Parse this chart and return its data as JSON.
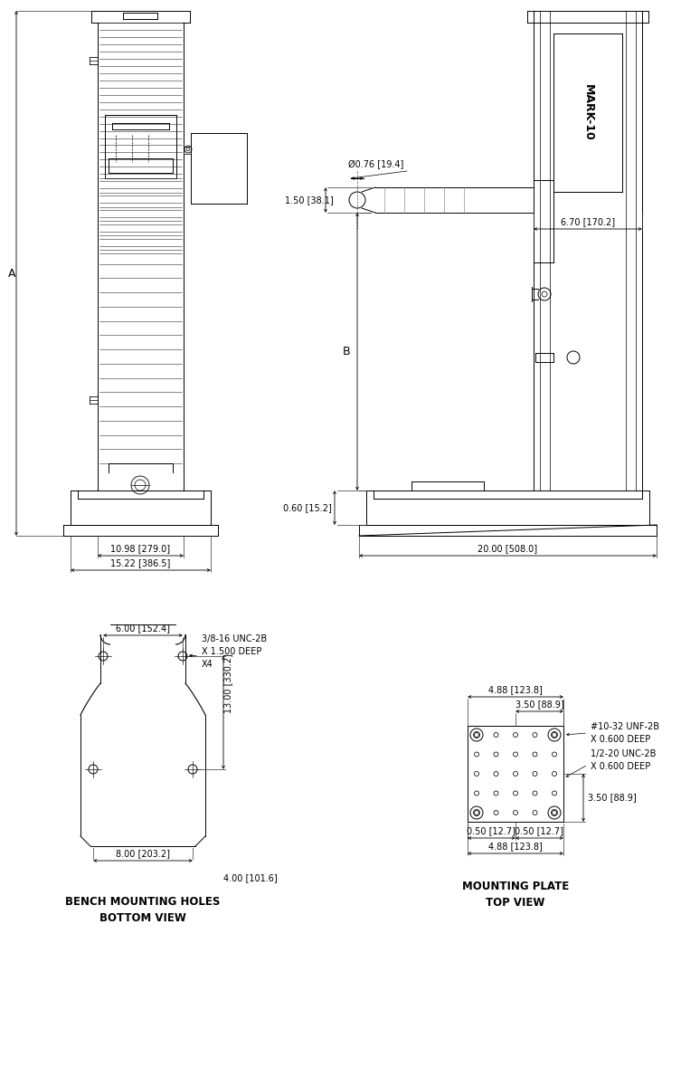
{
  "bg_color": "#ffffff",
  "fs": 7.0,
  "fs_title": 8.5,
  "dims_front": {
    "width_inner": "10.98 [279.0]",
    "width_outer": "15.22 [386.5]",
    "label_A": "A"
  },
  "dims_side": {
    "diam": "Ø0.76 [19.4]",
    "h1": "1.50 [38.1]",
    "h2": "6.70 [170.2]",
    "label_B": "B",
    "bottom": "0.60 [15.2]",
    "width": "20.00 [508.0]"
  },
  "dims_bench": {
    "top_width": "6.00 [152.4]",
    "bottom_width": "8.00 [203.2]",
    "height": "13.00 [330.2]",
    "right_offset": "4.00 [101.6]",
    "note": "3/8-16 UNC-2B\nX 1.500 DEEP\nX4"
  },
  "dims_plate": {
    "top": "3.50 [88.9]",
    "left": "4.88 [123.8]",
    "right": "3.50 [88.9]",
    "bot_left": "0.50 [12.7]",
    "bot_right": "0.50 [12.7]",
    "bot_total": "4.88 [123.8]",
    "note1": "#10-32 UNF-2B\nX 0.600 DEEP",
    "note2": "1/2-20 UNC-2B\nX 0.600 DEEP"
  },
  "title_bench": "BENCH MOUNTING HOLES\nBOTTOM VIEW",
  "title_plate": "MOUNTING PLATE\nTOP VIEW"
}
